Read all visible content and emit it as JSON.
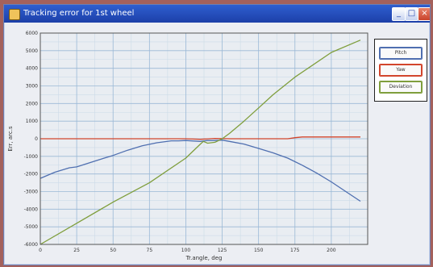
{
  "window": {
    "title": "Tracking error for 1st wheel",
    "minimize_glyph": "_",
    "maximize_glyph": "□",
    "close_glyph": "×"
  },
  "colors": {
    "plot_background": "#e9edf2",
    "grid_major": "#9ab8d6",
    "grid_minor": "#ccdbe8",
    "series_1": "#4f6fb0",
    "series_2": "#d2452c",
    "series_3": "#7f9e3c"
  },
  "chart_data": {
    "type": "line",
    "xlabel": "Tr.angle, deg",
    "ylabel": "Err, arc.s",
    "xlim": [
      0,
      225
    ],
    "ylim": [
      -6000,
      6000
    ],
    "x_ticks": [
      0,
      25,
      50,
      75,
      100,
      125,
      150,
      175,
      200
    ],
    "x_tick_labels": [
      "0",
      "25",
      "50",
      "75",
      "100",
      "125",
      "150",
      "175",
      "200"
    ],
    "y_ticks": [
      6000,
      5000,
      4000,
      3000,
      2000,
      1000,
      0,
      -1000,
      -2000,
      -3000,
      -4000,
      -5000,
      -6000
    ],
    "y_tick_labels": [
      "6000",
      "5000",
      "4000",
      "3000",
      "2000",
      "1000",
      "0",
      "-1000",
      "-2000",
      "-3000",
      "-4000",
      "-5000",
      "-6000"
    ],
    "grid": true,
    "legend_position": "right",
    "series": [
      {
        "name": "Pitch",
        "x": [
          0,
          10,
          20,
          25,
          40,
          50,
          60,
          70,
          80,
          90,
          95,
          100,
          110,
          112,
          115,
          120,
          125,
          130,
          140,
          150,
          160,
          170,
          180,
          190,
          200,
          210,
          220
        ],
        "y": [
          -2250,
          -1900,
          -1650,
          -1600,
          -1200,
          -950,
          -650,
          -400,
          -230,
          -120,
          -120,
          -100,
          -150,
          -130,
          -100,
          -100,
          -80,
          -150,
          -300,
          -550,
          -800,
          -1100,
          -1500,
          -1950,
          -2450,
          -3000,
          -3550
        ]
      },
      {
        "name": "Yaw",
        "x": [
          0,
          50,
          100,
          110,
          120,
          130,
          140,
          160,
          170,
          175,
          180,
          200,
          220
        ],
        "y": [
          0,
          0,
          0,
          -30,
          20,
          0,
          0,
          0,
          0,
          60,
          100,
          100,
          100
        ]
      },
      {
        "name": "Deviation",
        "x": [
          0,
          25,
          50,
          75,
          100,
          110,
          112,
          115,
          120,
          125,
          130,
          140,
          150,
          160,
          175,
          200,
          220
        ],
        "y": [
          -6000,
          -4800,
          -3600,
          -2500,
          -1100,
          -300,
          -150,
          -250,
          -200,
          0,
          300,
          1000,
          1750,
          2500,
          3500,
          4900,
          5600
        ]
      }
    ]
  }
}
